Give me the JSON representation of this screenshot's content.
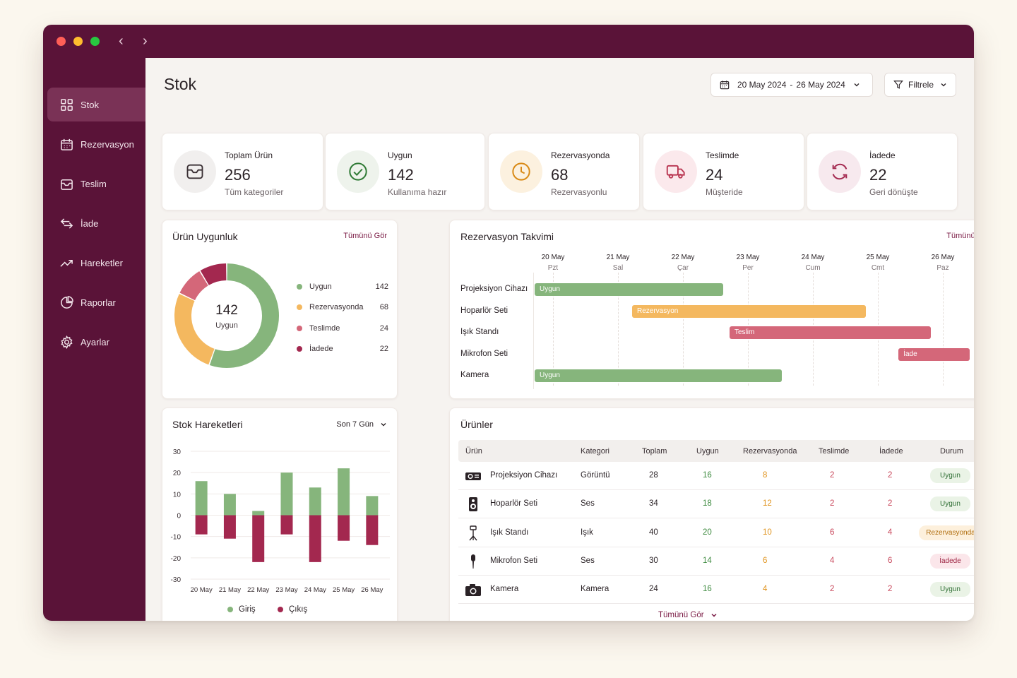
{
  "colors": {
    "sidebar": "#5a1338",
    "accent": "#7a1a44",
    "green": "#86b57c",
    "orange": "#f4b85f",
    "pink": "#d46779",
    "crimson": "#a3284f"
  },
  "window": {
    "nav_back": "‹",
    "nav_forward": "›"
  },
  "sidebar": {
    "items": [
      {
        "label": "Stok",
        "icon": "grid-icon",
        "active": true
      },
      {
        "label": "Rezervasyon",
        "icon": "calendar-icon"
      },
      {
        "label": "Teslim",
        "icon": "box-icon"
      },
      {
        "label": "İade",
        "icon": "return-arrows-icon"
      },
      {
        "label": "Hareketler",
        "icon": "trend-icon"
      },
      {
        "label": "Raporlar",
        "icon": "pie-icon"
      },
      {
        "label": "Ayarlar",
        "icon": "gear-icon"
      }
    ]
  },
  "header": {
    "title": "Stok",
    "date_start": "20 May 2024",
    "date_sep": "-",
    "date_end": "26 May 2024",
    "filter_label": "Filtrele"
  },
  "stats": [
    {
      "label": "Toplam Ürün",
      "value": "256",
      "sub": "Tüm kategoriler",
      "icon": "inbox-icon"
    },
    {
      "label": "Uygun",
      "value": "142",
      "sub": "Kullanıma hazır",
      "icon": "check-circle-icon"
    },
    {
      "label": "Rezervasyonda",
      "value": "68",
      "sub": "Rezervasyonlu",
      "icon": "clock-icon"
    },
    {
      "label": "Teslimde",
      "value": "24",
      "sub": "Müşteride",
      "icon": "truck-icon"
    },
    {
      "label": "İadede",
      "value": "22",
      "sub": "Geri dönüşte",
      "icon": "refresh-icon"
    }
  ],
  "availability": {
    "title": "Ürün Uygunluk",
    "link": "Tümünü Gör",
    "center_value": "142",
    "center_label": "Uygun",
    "legend": [
      {
        "label": "Uygun",
        "value": "142"
      },
      {
        "label": "Rezervasyonda",
        "value": "68"
      },
      {
        "label": "Teslimde",
        "value": "24"
      },
      {
        "label": "İadede",
        "value": "22"
      }
    ]
  },
  "calendar": {
    "title": "Rezervasyon Takvimi",
    "link": "Tümünü Gör",
    "days": [
      {
        "date": "20 May",
        "weekday": "Pzt"
      },
      {
        "date": "21 May",
        "weekday": "Sal"
      },
      {
        "date": "22 May",
        "weekday": "Çar"
      },
      {
        "date": "23 May",
        "weekday": "Per"
      },
      {
        "date": "24 May",
        "weekday": "Cum"
      },
      {
        "date": "25 May",
        "weekday": "Cmt"
      },
      {
        "date": "26 May",
        "weekday": "Paz"
      }
    ],
    "rows": [
      {
        "item": "Projeksiyon Cihazı",
        "status": "Uygun",
        "start": 0.0,
        "end": 2.9
      },
      {
        "item": "Hoparlör Seti",
        "status": "Rezervasyon",
        "start": 1.5,
        "end": 5.1
      },
      {
        "item": "Işık Standı",
        "status": "Teslim",
        "start": 3.0,
        "end": 6.1
      },
      {
        "item": "Mikrofon Seti",
        "status": "İade",
        "start": 5.6,
        "end": 6.7
      },
      {
        "item": "Kamera",
        "status": "Uygun",
        "start": 0.0,
        "end": 3.8
      }
    ]
  },
  "movements": {
    "title": "Stok Hareketleri",
    "range": "Son 7 Gün",
    "legend_in": "Giriş",
    "legend_out": "Çıkış"
  },
  "chart_data": {
    "type": "bar",
    "categories": [
      "20 May",
      "21 May",
      "22 May",
      "23 May",
      "24 May",
      "25 May",
      "26 May"
    ],
    "series": [
      {
        "name": "Giriş",
        "values": [
          16,
          10,
          2,
          20,
          13,
          22,
          9
        ]
      },
      {
        "name": "Çıkış",
        "values": [
          -9,
          -11,
          -22,
          -9,
          -22,
          -12,
          -14
        ]
      }
    ],
    "yticks": [
      "30",
      "20",
      "10",
      "0",
      "-10",
      "-20",
      "-30"
    ],
    "ylim": [
      -30,
      30
    ],
    "grid": true,
    "legend": "bottom"
  },
  "products": {
    "title": "Ürünler",
    "columns": [
      "Ürün",
      "Kategori",
      "Toplam",
      "Uygun",
      "Rezervasyonda",
      "Teslimde",
      "İadede",
      "Durum"
    ],
    "rows": [
      {
        "name": "Projeksiyon Cihazı",
        "category": "Görüntü",
        "total": "28",
        "available": "16",
        "reserved": "8",
        "delivered": "2",
        "returned": "2",
        "status": "Uygun",
        "icon": "projector-icon"
      },
      {
        "name": "Hoparlör Seti",
        "category": "Ses",
        "total": "34",
        "available": "18",
        "reserved": "12",
        "delivered": "2",
        "returned": "2",
        "status": "Uygun",
        "icon": "speaker-icon"
      },
      {
        "name": "Işık Standı",
        "category": "Işık",
        "total": "40",
        "available": "20",
        "reserved": "10",
        "delivered": "6",
        "returned": "4",
        "status": "Rezervasyonda",
        "icon": "light-stand-icon"
      },
      {
        "name": "Mikrofon Seti",
        "category": "Ses",
        "total": "30",
        "available": "14",
        "reserved": "6",
        "delivered": "4",
        "returned": "6",
        "status": "İadede",
        "icon": "microphone-icon"
      },
      {
        "name": "Kamera",
        "category": "Kamera",
        "total": "24",
        "available": "16",
        "reserved": "4",
        "delivered": "2",
        "returned": "2",
        "status": "Uygun",
        "icon": "camera-icon"
      }
    ],
    "view_all": "Tümünü Gör"
  }
}
